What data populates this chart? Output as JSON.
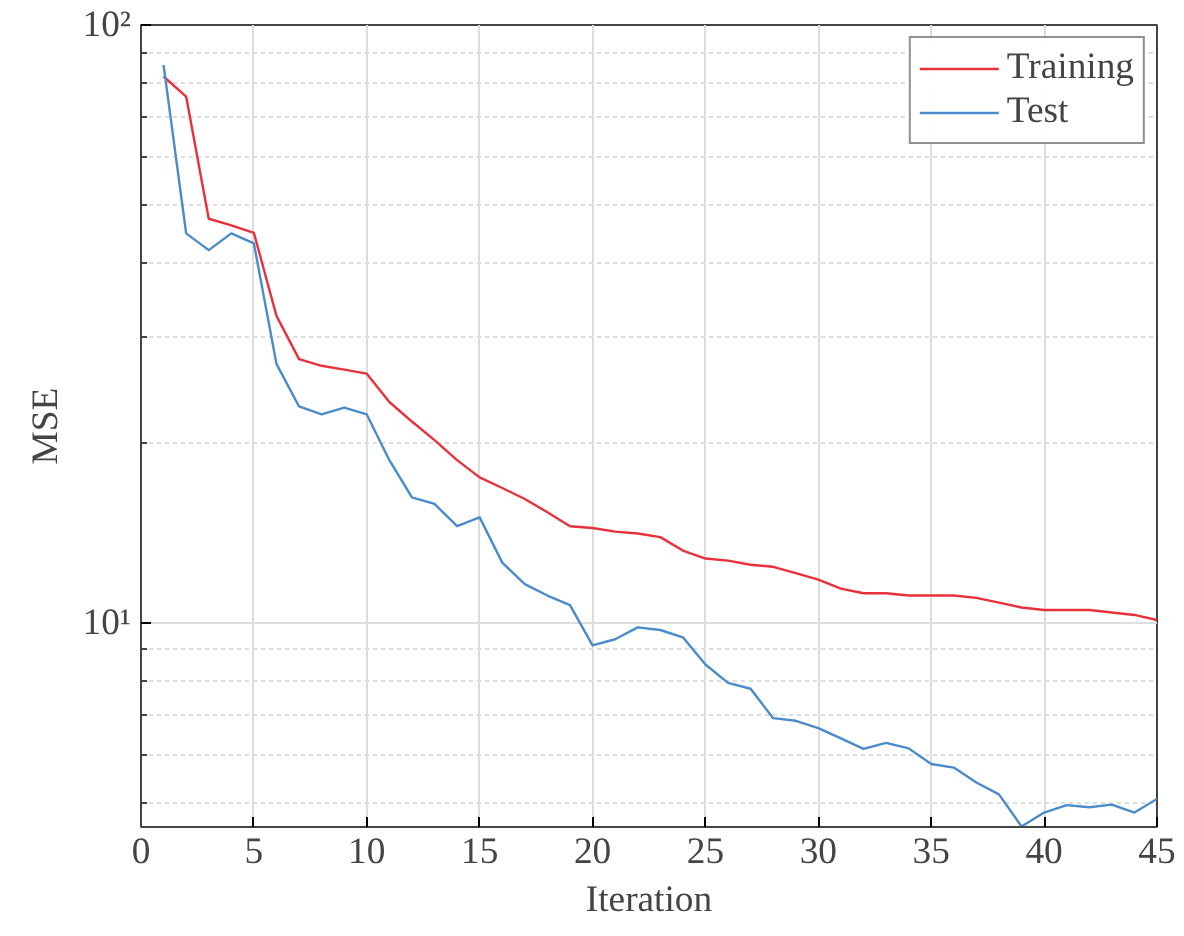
{
  "chart_data": {
    "type": "line",
    "xlabel": "Iteration",
    "ylabel": "MSE",
    "log": "y",
    "grid": true,
    "legend": "top right",
    "xlim": [
      0,
      45
    ],
    "xticks": [
      0,
      5,
      10,
      15,
      20,
      25,
      30,
      35,
      40,
      45
    ],
    "ylim": [
      4.55,
      100
    ],
    "yticks": [
      {
        "value": 10,
        "label": "10¹"
      },
      {
        "value": 100,
        "label": "10²"
      }
    ],
    "x": [
      1,
      2,
      3,
      4,
      5,
      6,
      7,
      8,
      9,
      10,
      11,
      12,
      13,
      14,
      15,
      16,
      17,
      18,
      19,
      20,
      21,
      22,
      23,
      24,
      25,
      26,
      27,
      28,
      29,
      30,
      31,
      32,
      33,
      34,
      35,
      36,
      37,
      38,
      39,
      40,
      41,
      42,
      43,
      44,
      45
    ],
    "series": [
      {
        "name": "Training",
        "color": "#e8313a",
        "values": [
          82,
          75.9,
          47.4,
          46.2,
          44.9,
          32.6,
          27.6,
          26.9,
          26.5,
          26.1,
          23.4,
          21.7,
          20.2,
          18.7,
          17.5,
          16.8,
          16.1,
          15.3,
          14.5,
          14.4,
          14.2,
          14.1,
          13.9,
          13.2,
          12.8,
          12.7,
          12.5,
          12.4,
          12.1,
          11.8,
          11.4,
          11.2,
          11.2,
          11.1,
          11.1,
          11.1,
          11.0,
          10.8,
          10.6,
          10.5,
          10.5,
          10.5,
          10.4,
          10.3,
          10.1
        ]
      },
      {
        "name": "Test",
        "color": "#4a8bc9",
        "values": [
          85.7,
          44.8,
          42.0,
          44.8,
          43.1,
          27.1,
          23.0,
          22.3,
          22.9,
          22.3,
          18.7,
          16.2,
          15.8,
          14.5,
          15.0,
          12.6,
          11.6,
          11.1,
          10.7,
          9.16,
          9.38,
          9.82,
          9.72,
          9.45,
          8.51,
          7.93,
          7.75,
          6.92,
          6.85,
          6.66,
          6.4,
          6.15,
          6.29,
          6.16,
          5.8,
          5.72,
          5.4,
          5.16,
          4.56,
          4.81,
          4.95,
          4.91,
          4.96,
          4.81,
          5.07
        ]
      }
    ]
  }
}
